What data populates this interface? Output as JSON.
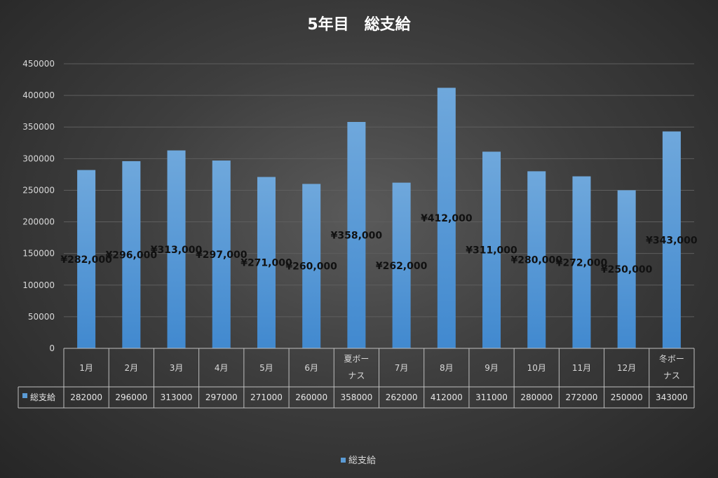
{
  "chart_data": {
    "type": "bar",
    "title": "5年目　総支給",
    "categories": [
      "1月",
      "2月",
      "3月",
      "4月",
      "5月",
      "6月",
      "夏ボーナス",
      "7月",
      "8月",
      "9月",
      "10月",
      "11月",
      "12月",
      "冬ボーナス"
    ],
    "category_lines": [
      [
        "1月"
      ],
      [
        "2月"
      ],
      [
        "3月"
      ],
      [
        "4月"
      ],
      [
        "5月"
      ],
      [
        "6月"
      ],
      [
        "夏ボー",
        "ナス"
      ],
      [
        "7月"
      ],
      [
        "8月"
      ],
      [
        "9月"
      ],
      [
        "10月"
      ],
      [
        "11月"
      ],
      [
        "12月"
      ],
      [
        "冬ボー",
        "ナス"
      ]
    ],
    "series": [
      {
        "name": "総支給",
        "values": [
          282000,
          296000,
          313000,
          297000,
          271000,
          260000,
          358000,
          262000,
          412000,
          311000,
          280000,
          272000,
          250000,
          343000
        ],
        "data_labels": [
          "¥282,000",
          "¥296,000",
          "¥313,000",
          "¥297,000",
          "¥271,000",
          "¥260,000",
          "¥358,000",
          "¥262,000",
          "¥412,000",
          "¥311,000",
          "¥280,000",
          "¥272,000",
          "¥250,000",
          "¥343,000"
        ],
        "table_values": [
          "282000",
          "296000",
          "313000",
          "297000",
          "271000",
          "260000",
          "358000",
          "262000",
          "412000",
          "311000",
          "280000",
          "272000",
          "250000",
          "343000"
        ],
        "color": "#5b9bd5"
      }
    ],
    "ylim": [
      0,
      450000
    ],
    "yticks": [
      "0",
      "50000",
      "100000",
      "150000",
      "200000",
      "250000",
      "300000",
      "350000",
      "400000",
      "450000"
    ],
    "xlabel": "",
    "ylabel": "",
    "grid": true,
    "legend": "bottom",
    "data_table": true
  },
  "colors": {
    "bar_top": "#6fa8dc",
    "bar_bottom": "#4a8fd1",
    "grid": "#5e5e5e",
    "text": "#d9d9d9"
  }
}
